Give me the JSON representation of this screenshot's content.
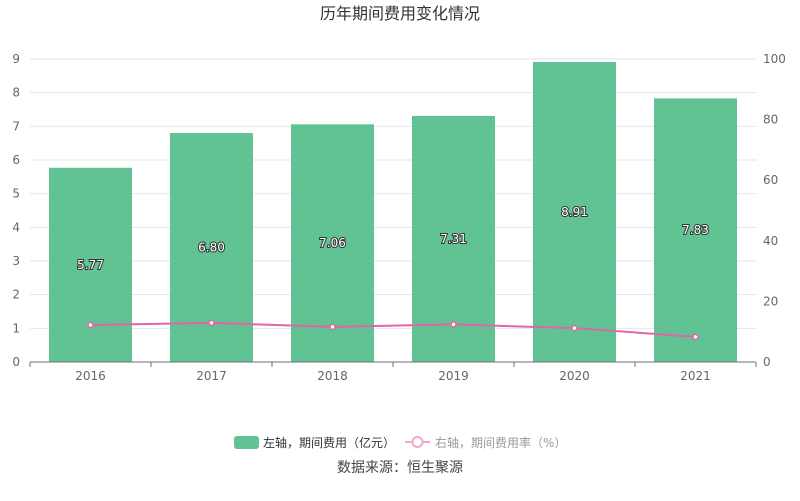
{
  "chart_data": {
    "type": "bar",
    "title": "历年期间费用变化情况",
    "categories": [
      "2016",
      "2017",
      "2018",
      "2019",
      "2020",
      "2021"
    ],
    "series": [
      {
        "name": "左轴，期间费用（亿元）",
        "type": "bar",
        "axis": "left",
        "values": [
          5.77,
          6.8,
          7.06,
          7.31,
          8.91,
          7.83
        ],
        "labels": [
          "5.77",
          "6.80",
          "7.06",
          "7.31",
          "8.91",
          "7.83"
        ],
        "color": "#61c393"
      },
      {
        "name": "右轴，期间费用率（%）",
        "type": "line",
        "axis": "right",
        "values": [
          12.2,
          12.9,
          11.6,
          12.4,
          11.2,
          8.3
        ],
        "color": "#e066a8"
      }
    ],
    "left_axis": {
      "ylim": [
        0,
        9
      ],
      "ticks": [
        "0",
        "1",
        "2",
        "3",
        "4",
        "5",
        "6",
        "7",
        "8",
        "9"
      ]
    },
    "right_axis": {
      "ylim": [
        0,
        100
      ],
      "ticks": [
        "0",
        "20",
        "40",
        "60",
        "80",
        "100"
      ]
    },
    "grid": true,
    "legend_placement": "bottom"
  },
  "source": "数据来源：恒生聚源"
}
